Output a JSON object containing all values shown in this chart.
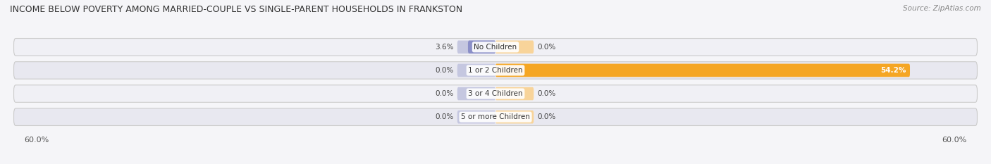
{
  "title": "INCOME BELOW POVERTY AMONG MARRIED-COUPLE VS SINGLE-PARENT HOUSEHOLDS IN FRANKSTON",
  "source": "Source: ZipAtlas.com",
  "categories": [
    "No Children",
    "1 or 2 Children",
    "3 or 4 Children",
    "5 or more Children"
  ],
  "married_values": [
    3.6,
    0.0,
    0.0,
    0.0
  ],
  "single_values": [
    0.0,
    54.2,
    0.0,
    0.0
  ],
  "married_color": "#8b8fc8",
  "single_color": "#f5a623",
  "married_light": "#c5c7e0",
  "single_light": "#f8d49a",
  "bar_bg_color": "#eeeef4",
  "row_bg_even": "#f0f0f5",
  "row_bg_odd": "#e8e8f0",
  "max_val": 60.0,
  "bar_height": 0.62,
  "background_color": "#f5f5f8",
  "text_color": "#444444",
  "min_bar_display": 5.0
}
